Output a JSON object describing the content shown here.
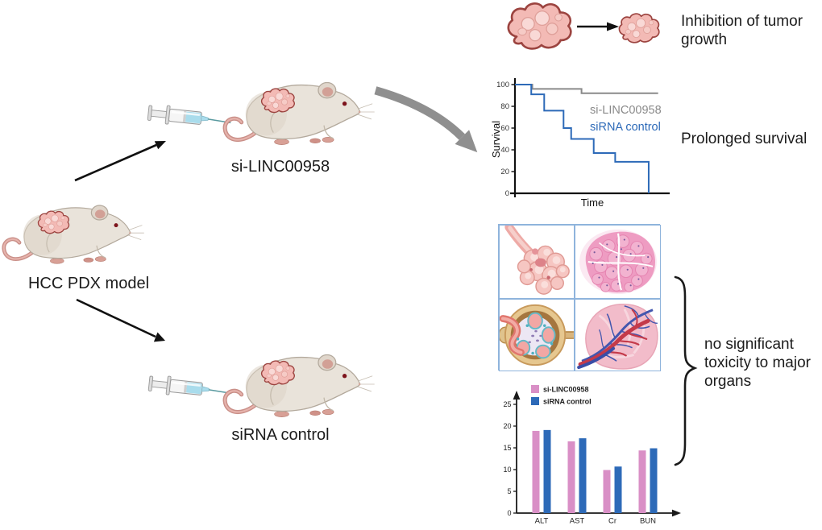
{
  "figure": {
    "model_label": "HCC PDX model",
    "arm_top_label": "si-LINC00958",
    "arm_bottom_label": "siRNA control",
    "outcomes": {
      "tumor": "Inhibition of tumor growth",
      "survival": "Prolonged survival",
      "toxicity": "no significant toxicity to major organs"
    }
  },
  "colors": {
    "si_linc_pink": "#d98fc6",
    "sirna_blue": "#2d6ab8",
    "si_linc_gray": "#8a8a8a",
    "text": "#1c1c1c",
    "flow_arrow_gray": "#8f8f8f",
    "panel_border": "#8fb4dc"
  },
  "illustrations": {
    "histology_panels": [
      "acinar-gland",
      "tissue-histology",
      "kidney-glomerulus",
      "organ-vasculature"
    ]
  },
  "chart_data": [
    {
      "id": "survival",
      "type": "line",
      "subtype": "kaplan-meier-step",
      "title": "",
      "xlabel": "Time",
      "ylabel": "Survival",
      "yticks": [
        0,
        20,
        40,
        60,
        80,
        100
      ],
      "ylim": [
        0,
        100
      ],
      "grid": false,
      "legend_position": "inside-top-right",
      "series": [
        {
          "name": "si-LINC00958",
          "color": "#8a8a8a",
          "steps": [
            [
              0,
              100
            ],
            [
              0.114,
              96
            ],
            [
              0.437,
              92
            ],
            [
              0.94,
              92
            ]
          ]
        },
        {
          "name": "siRNA control",
          "color": "#2d6ab8",
          "steps": [
            [
              0,
              100
            ],
            [
              0.107,
              91
            ],
            [
              0.192,
              76
            ],
            [
              0.319,
              60
            ],
            [
              0.369,
              50
            ],
            [
              0.517,
              37
            ],
            [
              0.658,
              29
            ],
            [
              0.878,
              0
            ]
          ]
        }
      ]
    },
    {
      "id": "toxicity",
      "type": "bar",
      "title": "",
      "xlabel": "",
      "ylabel": "",
      "categories": [
        "ALT",
        "AST",
        "Cr",
        "BUN"
      ],
      "yticks": [
        0,
        5,
        10,
        15,
        20,
        25
      ],
      "ylim": [
        0,
        26
      ],
      "grid": false,
      "legend_position": "top-left",
      "series": [
        {
          "name": "si-LINC00958",
          "color": "#d98fc6",
          "values": [
            18.9,
            16.5,
            9.9,
            14.4
          ]
        },
        {
          "name": "siRNA control",
          "color": "#2d6ab8",
          "values": [
            19.1,
            17.2,
            10.7,
            14.9
          ]
        }
      ]
    }
  ]
}
